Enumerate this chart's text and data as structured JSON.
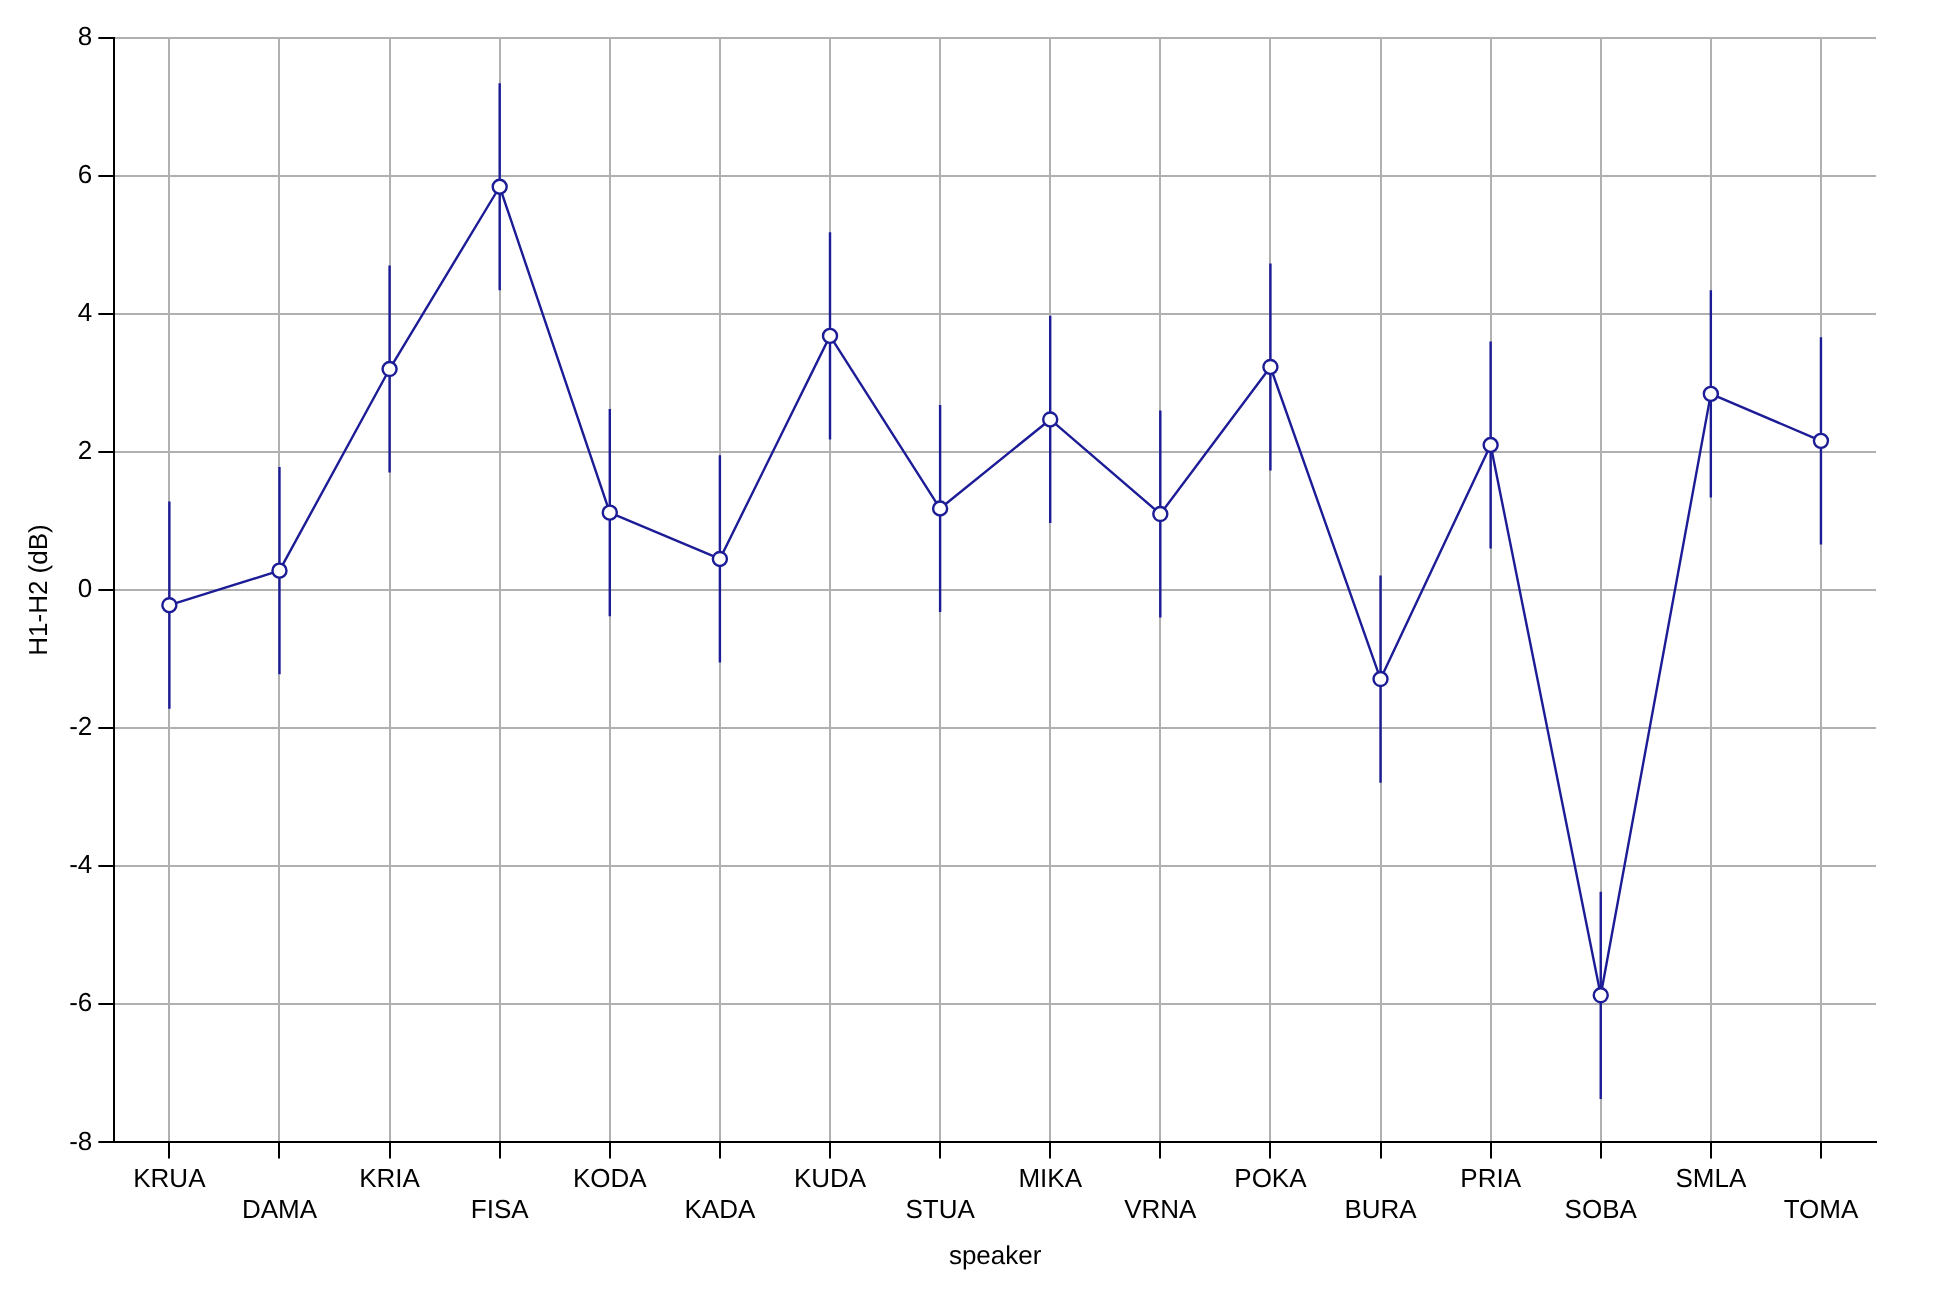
{
  "chart_data": {
    "type": "line",
    "xlabel": "speaker",
    "ylabel": "H1-H2 (dB)",
    "categories": [
      "KRUA",
      "DAMA",
      "KRIA",
      "FISA",
      "KODA",
      "KADA",
      "KUDA",
      "STUA",
      "MIKA",
      "VRNA",
      "POKA",
      "BURA",
      "PRIA",
      "SOBA",
      "SMLA",
      "TOMA"
    ],
    "series": [
      {
        "color": "#1c1c96",
        "values": [
          -0.22,
          0.28,
          3.2,
          5.84,
          1.12,
          0.45,
          3.68,
          1.18,
          2.47,
          1.1,
          3.23,
          -1.29,
          2.1,
          -5.87,
          2.84,
          2.16
        ],
        "errors": [
          1.5,
          1.5,
          1.5,
          1.5,
          1.5,
          1.5,
          1.5,
          1.5,
          1.5,
          1.5,
          1.5,
          1.5,
          1.5,
          1.5,
          1.5,
          1.5
        ]
      }
    ],
    "ylim": [
      -8,
      8
    ],
    "yticks": [
      -8,
      -6,
      -4,
      -2,
      0,
      2,
      4,
      6,
      8
    ],
    "grid": true,
    "marker": "circle",
    "line_style": "solid",
    "legend": false
  }
}
